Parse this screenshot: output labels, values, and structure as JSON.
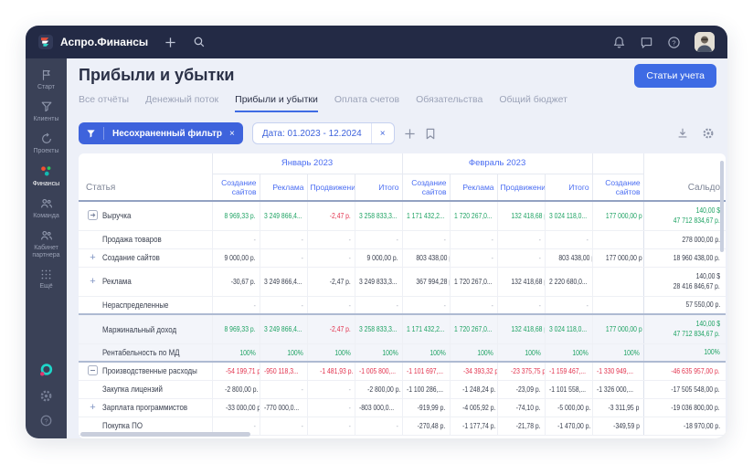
{
  "topbar": {
    "app_name": "Аспро.Финансы"
  },
  "header": {
    "title": "Прибыли и убытки",
    "action_button": "Статьи учета"
  },
  "tabs": {
    "items": [
      "Все отчёты",
      "Денежный поток",
      "Прибыли и убытки",
      "Оплата счетов",
      "Обязательства",
      "Общий бюджет"
    ],
    "active_index": 2
  },
  "filters": {
    "saved_filter_label": "Несохраненный фильтр",
    "date_filter_label": "Дата: 01.2023 - 12.2024"
  },
  "sidebar": {
    "items": [
      {
        "label": "Старт",
        "icon": "start-icon",
        "active": false
      },
      {
        "label": "Клиенты",
        "icon": "clients-icon",
        "active": false
      },
      {
        "label": "Проекты",
        "icon": "projects-icon",
        "active": false
      },
      {
        "label": "Финансы",
        "icon": "finance-icon",
        "active": true
      },
      {
        "label": "Команда",
        "icon": "team-icon",
        "active": false
      },
      {
        "label": "Кабинет партнера",
        "icon": "partner-icon",
        "active": false
      },
      {
        "label": "Ещё",
        "icon": "more-icon",
        "active": false
      }
    ]
  },
  "colors": {
    "accent_blue": "#3E63DC",
    "positive_green": "#1FA364",
    "negative_red": "#E2334E",
    "topbar_bg": "#232A45",
    "sidebar_bg": "#3A4157"
  },
  "table": {
    "statya_header": "Статья",
    "saldo_header": "Сальдо",
    "month_groups": [
      "Январь 2023",
      "Февраль 2023",
      ""
    ],
    "subcols": [
      "Создание сайтов",
      "Реклама",
      "Продвижение",
      "Итого",
      "Создание сайтов",
      "Реклама",
      "Продвижение",
      "Итого",
      "Создание сайтов"
    ],
    "rows": [
      {
        "label": "Выручка",
        "icon": "expand",
        "two": true,
        "values": [
          "8 969,33 р.",
          "3 249 866,4...",
          "-2,47 р.",
          "3 258 833,3...",
          "1 171 432,2...",
          "1 720 267,0...",
          "132 418,68 р.",
          "3 024 118,0...",
          "177 000,00 р"
        ],
        "value_tones": [
          "g",
          "g",
          "r",
          "g",
          "g",
          "g",
          "g",
          "g",
          "g"
        ],
        "saldo": [
          "140,00 $",
          "47 712 834,67 р."
        ],
        "saldo_tone": "g"
      },
      {
        "label": "Продажа товаров",
        "icon": "none",
        "values": [
          "-",
          "-",
          "-",
          "-",
          "-",
          "-",
          "-",
          "-",
          ""
        ],
        "saldo": [
          "278 000,00 р."
        ]
      },
      {
        "label": "Создание сайтов",
        "icon": "plus",
        "values": [
          "9 000,00 р.",
          "-",
          "-",
          "9 000,00 р.",
          "803 438,00 р.",
          "-",
          "-",
          "803 438,00 р.",
          "177 000,00 р"
        ],
        "saldo": [
          "18 960 438,00 р."
        ]
      },
      {
        "label": "Реклама",
        "icon": "plus",
        "two": true,
        "values": [
          "-30,67 р.",
          "3 249 866,4...",
          "-2,47 р.",
          "3 249 833,3...",
          "367 994,28 р.",
          "1 720 267,0...",
          "132 418,68 р.",
          "2 220 680,0...",
          ""
        ],
        "saldo": [
          "140,00 $",
          "28 416 846,67 р."
        ]
      },
      {
        "label": "Нераспределенные",
        "icon": "none",
        "values": [
          "-",
          "-",
          "-",
          "-",
          "-",
          "-",
          "-",
          "-",
          ""
        ],
        "saldo": [
          "57 550,00 р."
        ]
      },
      {
        "label": "Маржинальный доход",
        "icon": "none",
        "two": true,
        "highlight": true,
        "sep_top": true,
        "values": [
          "8 969,33 р.",
          "3 249 866,4...",
          "-2,47 р.",
          "3 258 833,3...",
          "1 171 432,2...",
          "1 720 267,0...",
          "132 418,68 р.",
          "3 024 118,0...",
          "177 000,00 р"
        ],
        "value_tones": [
          "g",
          "g",
          "r",
          "g",
          "g",
          "g",
          "g",
          "g",
          "g"
        ],
        "saldo": [
          "140,00 $",
          "47 712 834,67 р."
        ],
        "saldo_tone": "g"
      },
      {
        "label": "Рентабельность по МД",
        "icon": "none",
        "highlight": true,
        "sep_bot": true,
        "values": [
          "100%",
          "100%",
          "100%",
          "100%",
          "100%",
          "100%",
          "100%",
          "100%",
          "100%"
        ],
        "value_tones": [
          "g",
          "g",
          "g",
          "g",
          "g",
          "g",
          "g",
          "g",
          "g"
        ],
        "saldo": [
          "100%"
        ],
        "saldo_tone": "g"
      },
      {
        "label": "Производственные расходы",
        "icon": "collapse",
        "values": [
          "-54 199,71 р.",
          "-950 118,3...",
          "-1 481,93 р.",
          "-1 005 800,...",
          "-1 101 697,...",
          "-34 393,32 р.",
          "-23 375,75 р.",
          "-1 159 467,...",
          "-1 330 949,..."
        ],
        "value_tones": [
          "r",
          "r",
          "r",
          "r",
          "r",
          "r",
          "r",
          "r",
          "r"
        ],
        "saldo": [
          "-46 635 957,00 р."
        ],
        "saldo_tone": "r"
      },
      {
        "label": "Закупка лицензий",
        "icon": "none",
        "values": [
          "-2 800,00 р.",
          "-",
          "-",
          "-2 800,00 р.",
          "-1 100 286,...",
          "-1 248,24 р.",
          "-23,09 р.",
          "-1 101 558,...",
          "-1 326 000,..."
        ],
        "saldo": [
          "-17 505 548,00 р."
        ]
      },
      {
        "label": "Зарплата программистов",
        "icon": "plus",
        "values": [
          "-33 000,00 р.",
          "-770 000,0...",
          "-",
          "-803 000,0...",
          "-919,99 р.",
          "-4 005,92 р.",
          "-74,10 р.",
          "-5 000,00 р.",
          "-3 311,95 р"
        ],
        "saldo": [
          "-19 036 800,00 р."
        ]
      },
      {
        "label": "Покупка ПО",
        "icon": "none",
        "values": [
          "-",
          "-",
          "-",
          "-",
          "-270,48 р.",
          "-1 177,74 р.",
          "-21,78 р.",
          "-1 470,00 р.",
          "-349,59 р"
        ],
        "saldo": [
          "-18 970,00 р."
        ]
      }
    ]
  }
}
